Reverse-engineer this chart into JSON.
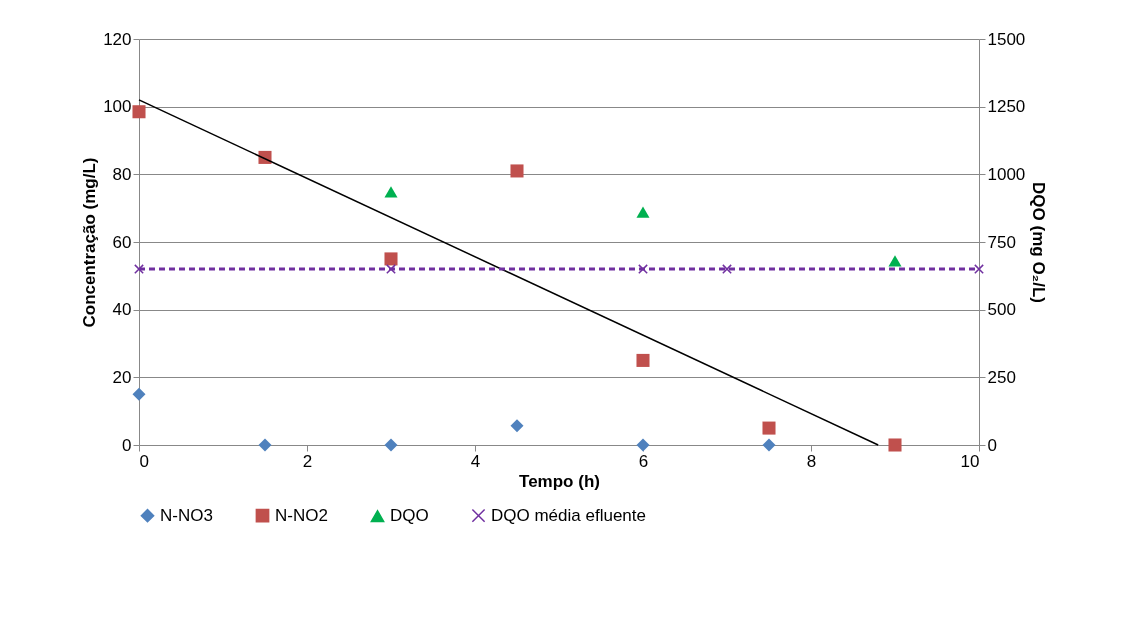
{
  "chart_data": {
    "type": "scatter",
    "xlabel": "Tempo (h)",
    "ylabel": "Concentração (mg/L)",
    "y2label": "DQO (mg O₂/L)",
    "xlim": [
      0,
      10
    ],
    "xticks": [
      0,
      2,
      4,
      6,
      8,
      10
    ],
    "ylim": [
      0,
      120
    ],
    "yticks": [
      0,
      20,
      40,
      60,
      80,
      100,
      120
    ],
    "y2lim": [
      0,
      1500
    ],
    "y2ticks": [
      0,
      250,
      500,
      750,
      1000,
      1250,
      1500
    ],
    "grid": "y",
    "legend": "bottom",
    "series": [
      {
        "name": "N-NO3",
        "color": "#4f81bd",
        "marker": "diamond",
        "x": [
          0,
          1.5,
          3,
          4.5,
          6,
          7.5
        ],
        "values": [
          15,
          0,
          0,
          5.7,
          0,
          0
        ]
      },
      {
        "name": "N-NO2",
        "color": "#c0504d",
        "marker": "square",
        "x": [
          0,
          1.5,
          3,
          4.5,
          6,
          7.5,
          9
        ],
        "values": [
          98.5,
          85,
          55,
          81,
          25,
          5,
          0
        ]
      },
      {
        "name": "DQO",
        "color": "#00b050",
        "marker": "triangle",
        "axis": "y2",
        "x": [
          3,
          6,
          9
        ],
        "values": [
          935,
          860,
          680
        ]
      },
      {
        "name": "DQO média efluente",
        "type": "line",
        "color": "#7030a0",
        "marker": "cross",
        "line_style": "dashed",
        "axis": "y2",
        "x": [
          0,
          3,
          6,
          7,
          10
        ],
        "values": [
          650,
          650,
          650,
          650,
          650
        ]
      },
      {
        "type": "line",
        "color": "#000000",
        "marker": "none",
        "x": [
          0,
          8.8
        ],
        "values": [
          102,
          0
        ]
      }
    ]
  }
}
